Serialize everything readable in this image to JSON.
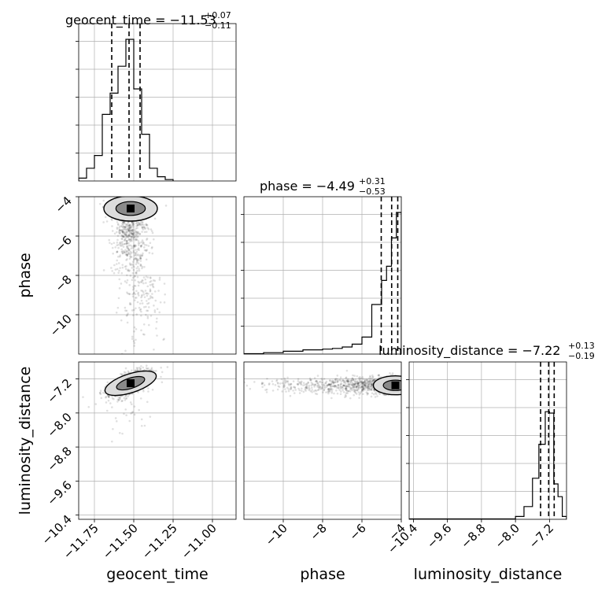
{
  "chart_data": {
    "type": "corner",
    "parameters": [
      "geocent_time",
      "phase",
      "luminosity_distance"
    ],
    "titles": [
      {
        "text": "geocent_time = −11.53",
        "plus": "+0.07",
        "minus": "−0.11"
      },
      {
        "text": "phase = −4.49",
        "plus": "+0.31",
        "minus": "−0.53"
      },
      {
        "text": "luminosity_distance = −7.22",
        "plus": "+0.13",
        "minus": "−0.19"
      }
    ],
    "axis_labels": [
      "geocent_time",
      "phase",
      "luminosity_distance"
    ],
    "ranges": [
      [
        -11.85,
        -10.85
      ],
      [
        -12.0,
        -4.0
      ],
      [
        -10.5,
        -6.8
      ]
    ],
    "ticks": [
      {
        "values": [
          -11.75,
          -11.5,
          -11.25,
          -11.0
        ],
        "labels": [
          "−11.75",
          "−11.50",
          "−11.25",
          "−11.00"
        ]
      },
      {
        "values": [
          -10,
          -8,
          -6,
          -4
        ],
        "labels": [
          "−10",
          "−8",
          "−6",
          "−4"
        ]
      },
      {
        "values": [
          -10.4,
          -9.6,
          -8.8,
          -8.0,
          -7.2
        ],
        "labels": [
          "−10.4",
          "−9.6",
          "−8.8",
          "−8.0",
          "−7.2"
        ]
      }
    ],
    "quantiles": [
      [
        -11.64,
        -11.53,
        -11.46
      ],
      [
        -5.02,
        -4.49,
        -4.18
      ],
      [
        -7.41,
        -7.22,
        -7.09
      ]
    ],
    "histograms": [
      {
        "edges": [
          -11.85,
          -11.8,
          -11.75,
          -11.7,
          -11.65,
          -11.6,
          -11.55,
          -11.5,
          -11.45,
          -11.4,
          -11.35,
          -11.3,
          -11.25
        ],
        "counts": [
          0.02,
          0.09,
          0.18,
          0.47,
          0.62,
          0.81,
          1.0,
          0.65,
          0.33,
          0.09,
          0.03,
          0.01
        ]
      },
      {
        "edges": [
          -12.0,
          -11.0,
          -10.0,
          -9.0,
          -8.0,
          -7.5,
          -7.0,
          -6.5,
          -6.0,
          -5.5,
          -5.0,
          -4.75,
          -4.5,
          -4.25,
          -4.0
        ],
        "counts": [
          0.003,
          0.01,
          0.02,
          0.03,
          0.035,
          0.04,
          0.05,
          0.07,
          0.12,
          0.35,
          0.52,
          0.62,
          0.82,
          1.0
        ]
      },
      {
        "edges": [
          -10.5,
          -8.0,
          -7.8,
          -7.6,
          -7.45,
          -7.3,
          -7.2,
          -7.1,
          -7.0,
          -6.9,
          -6.8
        ],
        "counts": [
          0.003,
          0.02,
          0.09,
          0.29,
          0.53,
          0.76,
          0.75,
          0.25,
          0.16,
          0.02
        ]
      }
    ],
    "scatter_centers": {
      "phase_vs_geocent_time": {
        "x": -11.52,
        "y": -4.6
      },
      "luminosity_distance_vs_geocent_time": {
        "x": -11.52,
        "y": -7.3
      },
      "luminosity_distance_vs_phase": {
        "x": -4.3,
        "y": -7.35
      }
    },
    "grid": true,
    "colors": {
      "line": "#000000",
      "grid": "#b0b0b0",
      "density": "#000000"
    }
  }
}
